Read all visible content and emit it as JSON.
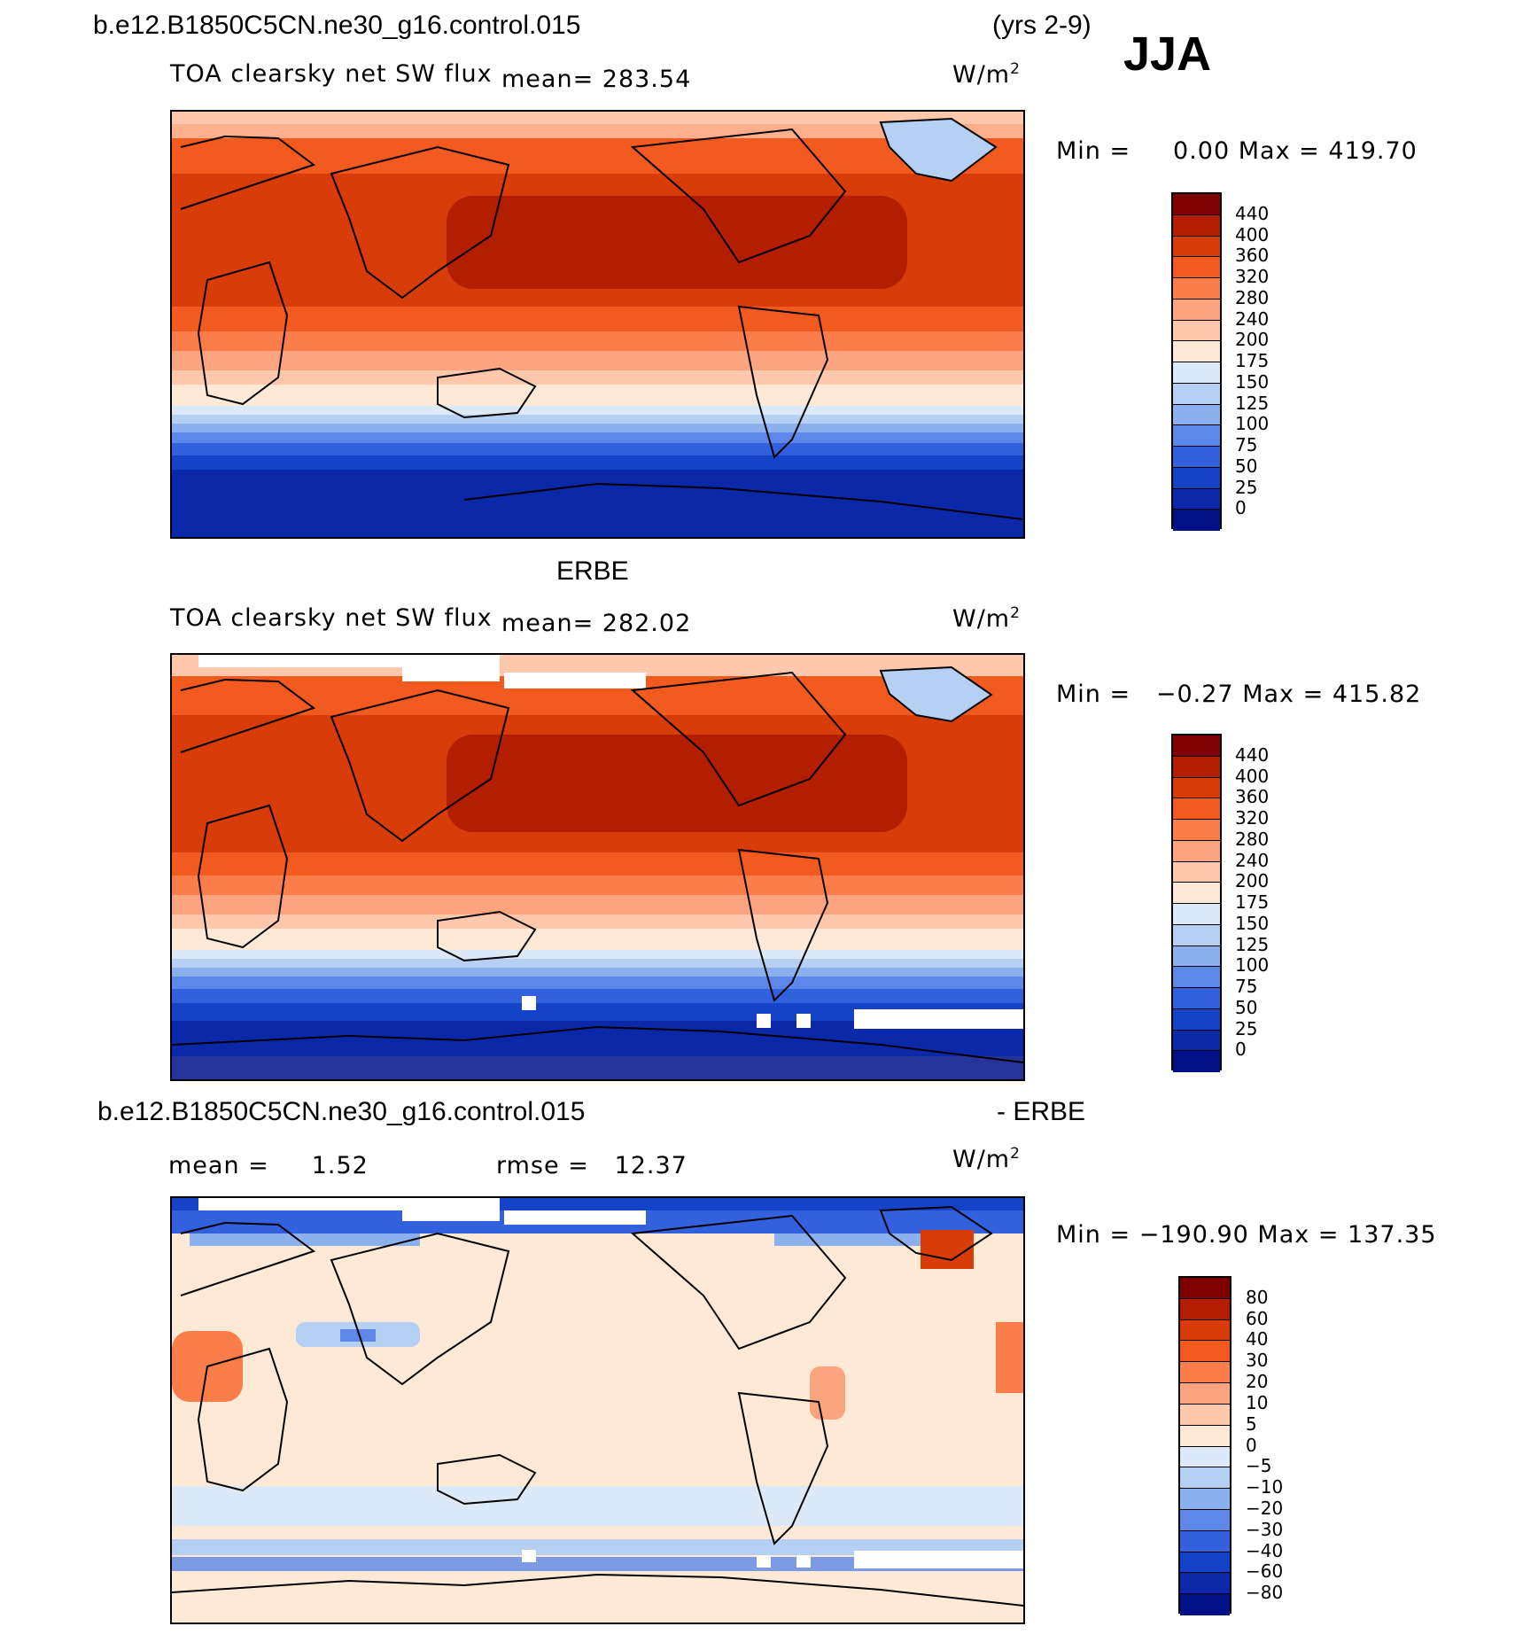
{
  "header": {
    "case_name": "b.e12.B1850C5CN.ne30_g16.control.015",
    "years": "(yrs 2-9)",
    "season": "JJA"
  },
  "panels": [
    {
      "id": "model",
      "variable": "TOA clearsky net SW flux",
      "mean_text": "mean= 283.54",
      "units": "W/m",
      "units_sup": "2",
      "min_label": "Min =",
      "min_value": "0.00",
      "max_label": "Max =",
      "max_value": "419.70",
      "colorbar_labels": [
        "440",
        "400",
        "360",
        "320",
        "280",
        "240",
        "200",
        "175",
        "150",
        "125",
        "100",
        "75",
        "50",
        "25",
        "0"
      ],
      "colors": [
        "#7f0000",
        "#b31e00",
        "#d83c08",
        "#f25a20",
        "#fb7e4a",
        "#fca37f",
        "#fdc8ac",
        "#fee9d7",
        "#dbe9f8",
        "#b6d0f3",
        "#8bb0ee",
        "#5d87e8",
        "#3360dc",
        "#1543c7",
        "#0a28a8",
        "#001188"
      ]
    },
    {
      "id": "obs",
      "dataset_title": "ERBE",
      "variable": "TOA clearsky net SW flux",
      "mean_text": "mean= 282.02",
      "units": "W/m",
      "units_sup": "2",
      "min_label": "Min =",
      "min_value": "−0.27",
      "max_label": "Max =",
      "max_value": "415.82",
      "colorbar_labels": [
        "440",
        "400",
        "360",
        "320",
        "280",
        "240",
        "200",
        "175",
        "150",
        "125",
        "100",
        "75",
        "50",
        "25",
        "0"
      ],
      "colors": [
        "#7f0000",
        "#b31e00",
        "#d83c08",
        "#f25a20",
        "#fb7e4a",
        "#fca37f",
        "#fdc8ac",
        "#fee9d7",
        "#dbe9f8",
        "#b6d0f3",
        "#8bb0ee",
        "#5d87e8",
        "#3360dc",
        "#1543c7",
        "#0a28a8",
        "#001188"
      ]
    },
    {
      "id": "diff",
      "case_name": "b.e12.B1850C5CN.ne30_g16.control.015",
      "minus_label": "- ERBE",
      "mean_label": "mean =",
      "mean_value": "1.52",
      "rmse_label": "rmse =",
      "rmse_value": "12.37",
      "units": "W/m",
      "units_sup": "2",
      "min_label": "Min =",
      "min_value": "−190.90",
      "max_label": "Max =",
      "max_value": "137.35",
      "colorbar_labels": [
        "80",
        "60",
        "40",
        "30",
        "20",
        "10",
        "5",
        "0",
        "−5",
        "−10",
        "−20",
        "−30",
        "−40",
        "−60",
        "−80"
      ],
      "colors": [
        "#7f0000",
        "#b31e00",
        "#d83c08",
        "#f25a20",
        "#fb7e4a",
        "#fca37f",
        "#fdc8ac",
        "#fee9d7",
        "#dbe9f8",
        "#b6d0f3",
        "#8bb0ee",
        "#5d87e8",
        "#3360dc",
        "#1543c7",
        "#0a28a8",
        "#001188"
      ]
    }
  ]
}
